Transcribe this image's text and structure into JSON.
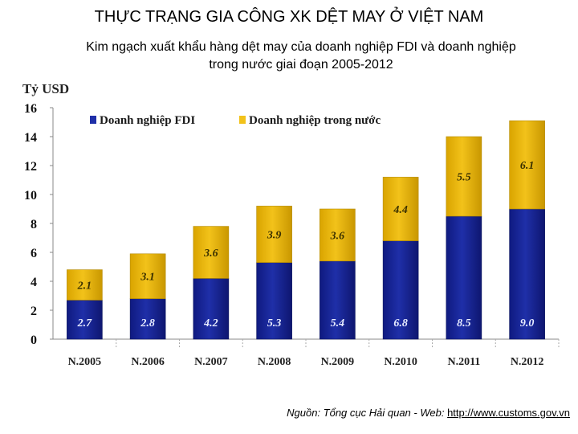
{
  "header": {
    "title": "THỰC TRẠNG GIA CÔNG  XK DỆT MAY Ở VIỆT NAM",
    "subtitle_line1": "Kim ngạch xuất khẩu hàng dệt may của doanh nghiệp FDI và doanh nghiệp",
    "subtitle_line2": "trong nước giai đoạn 2005-2012"
  },
  "source": {
    "prefix": "Nguồn: Tổng cục Hải quan -  Web: ",
    "link": "http://www.customs.gov.vn"
  },
  "chart_data": {
    "type": "bar",
    "stacked": true,
    "ylabel": "Tỷ USD",
    "ylim": [
      0,
      16
    ],
    "yticks": [
      "0",
      "2",
      "4",
      "6",
      "8",
      "10",
      "12",
      "14",
      "16"
    ],
    "legend_position": "top",
    "categories": [
      "N.2005",
      "N.2006",
      "N.2007",
      "N.2008",
      "N.2009",
      "N.2010",
      "N.2011",
      "N.2012"
    ],
    "series": [
      {
        "name": "Doanh nghiệp FDI",
        "color": "#1f2fa8",
        "values": [
          2.7,
          2.8,
          4.2,
          5.3,
          5.4,
          6.8,
          8.5,
          9.0
        ],
        "labels": [
          "2.7",
          "2.8",
          "4.2",
          "5.3",
          "5.4",
          "6.8",
          "8.5",
          "9.0"
        ]
      },
      {
        "name": "Doanh nghiệp trong nước",
        "color": "#f2c21a",
        "values": [
          2.1,
          3.1,
          3.6,
          3.9,
          3.6,
          4.4,
          5.5,
          6.1
        ],
        "labels": [
          "2.1",
          "3.1",
          "3.6",
          "3.9",
          "3.6",
          "4.4",
          "5.5",
          "6.1"
        ]
      }
    ]
  }
}
